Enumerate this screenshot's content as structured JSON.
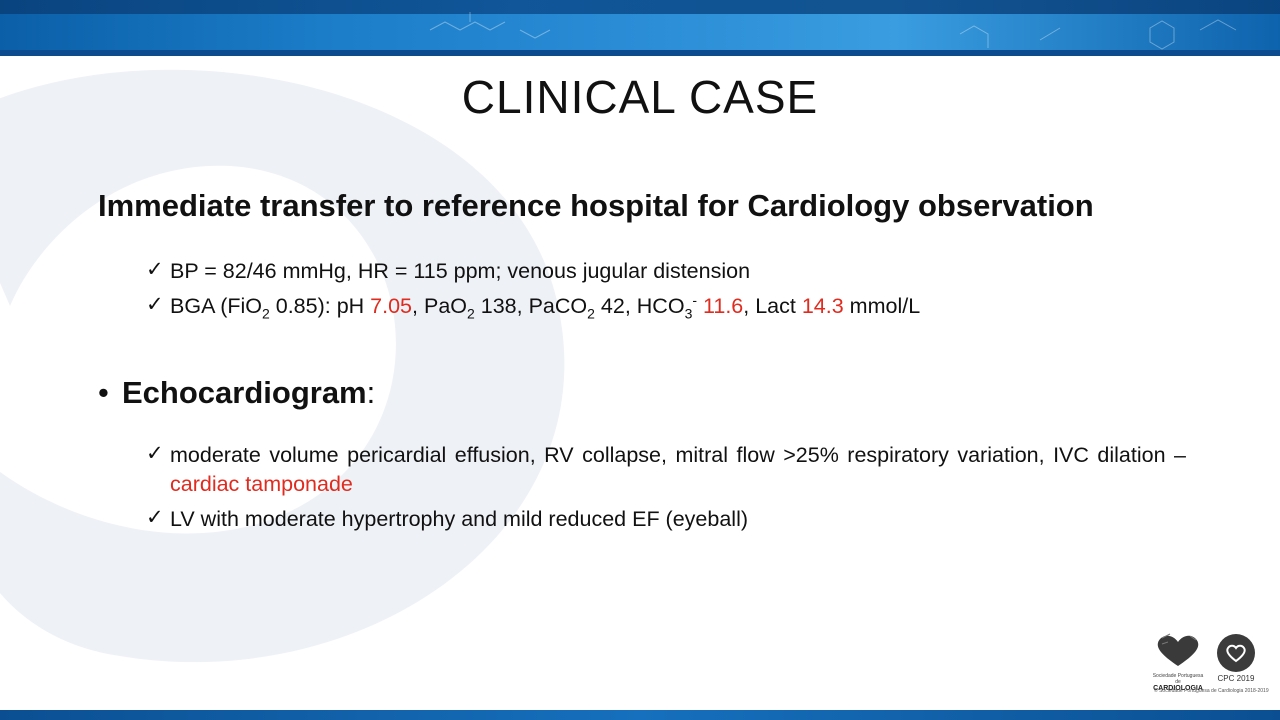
{
  "slide": {
    "title": "CLINICAL CASE",
    "headline": "Immediate transfer to reference hospital for Cardiology observation",
    "vitals": {
      "check": "✓",
      "text": "BP = 82/46 mmHg, HR = 115 ppm; venous jugular distension"
    },
    "bga": {
      "check": "✓",
      "prefix": "BGA (FiO",
      "fio2_sub": "2",
      "fio2_val": " 0.85): pH ",
      "ph": "7.05",
      "pao2_label": ", PaO",
      "pao2_sub": "2",
      "pao2_val": " 138, PaCO",
      "paco2_sub": "2",
      "paco2_val": " 42, HCO",
      "hco3_sub": "3",
      "hco3_sup": "-",
      "hco3_val": "11.6",
      "lact_label": ", Lact ",
      "lact_val": "14.3",
      "lact_unit": " mmol/L"
    },
    "echo_bullet": {
      "dot": "•",
      "label": "Echocardiogram",
      "colon": ":"
    },
    "echo_items": [
      {
        "check": "✓",
        "text": "moderate volume pericardial effusion, RV collapse, mitral flow >25% respiratory variation, IVC dilation – ",
        "highlight": "cardiac tamponade"
      },
      {
        "check": "✓",
        "text": "LV with moderate hypertrophy and mild reduced EF (eyeball)"
      }
    ]
  },
  "logos": {
    "spc_caption_small": "Sociedade Portuguesa de",
    "spc_caption": "CARDIOLOGIA",
    "cpc_caption": "CPC 2019",
    "footnote": "© Sociedade Portuguesa de Cardiologia 2018-2019"
  },
  "colors": {
    "highlight": "#e02b1e",
    "banner": "#1b7cc7"
  }
}
